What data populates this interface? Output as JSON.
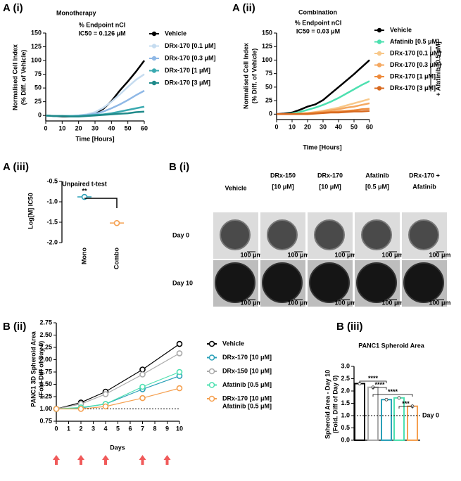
{
  "chart_data": [
    {
      "type": "line",
      "panel_label": "A (i)",
      "title": "Monotherapy",
      "annotations": [
        "% Endpoint nCI",
        "IC50 = 0.126 μM"
      ],
      "x_label": "Time [Hours]",
      "y_label": [
        "Normalised Cell Index",
        "(% Diff. of Vehicle)"
      ],
      "x": [
        0,
        5,
        10,
        15,
        20,
        25,
        30,
        35,
        40,
        45,
        50,
        55,
        60
      ],
      "xlim": [
        0,
        60
      ],
      "xticks": [
        0,
        10,
        20,
        30,
        40,
        50,
        60
      ],
      "ylim": [
        -10,
        150
      ],
      "yticks": [
        0,
        25,
        50,
        75,
        100,
        125,
        150
      ],
      "series": [
        {
          "name": "Vehicle",
          "color": "#000000",
          "values": [
            0,
            -1,
            -2,
            -2,
            -1,
            1,
            4,
            12,
            26,
            45,
            62,
            80,
            100
          ]
        },
        {
          "name": "DRx-170 [0.1 μM]",
          "color": "#c6dcf0",
          "values": [
            0,
            -1,
            -1,
            -1,
            0,
            2,
            6,
            14,
            25,
            38,
            52,
            65,
            75
          ]
        },
        {
          "name": "DRx-170 [0.3 μM]",
          "color": "#8fb8e6",
          "values": [
            0,
            -1,
            -1,
            -1,
            0,
            1,
            3,
            7,
            13,
            20,
            28,
            37,
            45
          ]
        },
        {
          "name": "DRx-170 [1 μM]",
          "color": "#3aa9b0",
          "values": [
            0,
            -1,
            -1,
            -1,
            -1,
            0,
            1,
            2,
            4,
            7,
            10,
            13,
            16
          ]
        },
        {
          "name": "DRx-170 [3 μM]",
          "color": "#1f8a8a",
          "values": [
            0,
            -1,
            -1,
            -2,
            -2,
            -1,
            0,
            1,
            2,
            3,
            4,
            6,
            7
          ]
        }
      ]
    },
    {
      "type": "line",
      "panel_label": "A (ii)",
      "title": "Combination",
      "annotations": [
        "% Endpoint nCI",
        "IC50 = 0.03 μM"
      ],
      "x_label": "Time [Hours]",
      "y_label": [
        "Normalised Cell Index",
        "(% Diff. of Vehicle)"
      ],
      "bracket_label": "+ Afatinib [0.5 μM]",
      "x": [
        0,
        5,
        10,
        15,
        20,
        25,
        30,
        35,
        40,
        45,
        50,
        55,
        60
      ],
      "xlim": [
        0,
        60
      ],
      "xticks": [
        0,
        10,
        20,
        30,
        40,
        50,
        60
      ],
      "ylim": [
        -10,
        150
      ],
      "yticks": [
        0,
        25,
        50,
        75,
        100,
        125,
        150
      ],
      "series": [
        {
          "name": "Vehicle",
          "color": "#000000",
          "values": [
            0,
            1,
            3,
            8,
            14,
            18,
            26,
            38,
            50,
            62,
            74,
            87,
            100
          ]
        },
        {
          "name": "Afatinib [0.5 μM]",
          "color": "#4de0b0",
          "values": [
            0,
            0,
            1,
            4,
            8,
            12,
            17,
            23,
            30,
            38,
            46,
            54,
            61
          ]
        },
        {
          "name": "DRx-170 [0.1 μM]",
          "color": "#f8c88a",
          "values": [
            0,
            0,
            0,
            1,
            2,
            4,
            6,
            9,
            12,
            16,
            20,
            24,
            28
          ]
        },
        {
          "name": "DRx-170 [0.3 μM]",
          "color": "#f5a860",
          "values": [
            0,
            0,
            0,
            1,
            2,
            3,
            5,
            7,
            9,
            12,
            14,
            17,
            20
          ]
        },
        {
          "name": "DRx-170 [1 μM]",
          "color": "#ee8a3a",
          "values": [
            0,
            0,
            0,
            0,
            1,
            2,
            3,
            4,
            5,
            6,
            7,
            9,
            10
          ]
        },
        {
          "name": "DRx-170 [3 μM]",
          "color": "#d86a20",
          "values": [
            0,
            0,
            0,
            0,
            0,
            1,
            2,
            3,
            3,
            4,
            5,
            5,
            6
          ]
        }
      ]
    },
    {
      "type": "dot",
      "panel_label": "A (iii)",
      "y_label": "Log[M] IC50",
      "annotations": [
        "Unpaired t-test",
        "**"
      ],
      "categories": [
        "Mono",
        "Combo"
      ],
      "values": [
        -0.88,
        -1.52
      ],
      "errors": [
        0.02,
        0.04
      ],
      "colors": [
        "#2aa0b8",
        "#f5a050"
      ],
      "ylim": [
        -2,
        -0.5
      ],
      "yticks": [
        -0.5,
        {
          "value": -1,
          "label": "-1.0"
        },
        -1.5,
        {
          "value": -2,
          "label": "-2.0"
        }
      ]
    },
    {
      "type": "image_grid",
      "panel_label": "B (i)",
      "columns": [
        [
          "Vehicle"
        ],
        [
          "DRx-150",
          "[10 μM]"
        ],
        [
          "DRx-170",
          "[10 μM]"
        ],
        [
          "Afatinib",
          "[0.5 μM]"
        ],
        [
          "DRx-170 +",
          "Afatinib"
        ]
      ],
      "rows": [
        "Day 0",
        "Day 10"
      ],
      "scale_bar": "100 μm"
    },
    {
      "type": "line",
      "panel_label": "B (ii)",
      "x_label": "Days",
      "y_label": [
        "PANC1 3D Spheroid Area",
        "(Fold-Diff of Day 0)"
      ],
      "x": [
        0,
        2,
        4,
        7,
        10
      ],
      "xlim": [
        0,
        10
      ],
      "xticks": [
        0,
        1,
        2,
        3,
        4,
        5,
        6,
        7,
        8,
        9,
        10
      ],
      "ylim": [
        0.75,
        2.75
      ],
      "yticks": [
        0.75,
        {
          "value": 1,
          "label": "1.00"
        },
        1.25,
        {
          "value": 1.5,
          "label": "1.50"
        },
        1.75,
        {
          "value": 2,
          "label": "2.00"
        },
        2.25,
        {
          "value": 2.5,
          "label": "2.50"
        },
        2.75
      ],
      "hline": 1,
      "dosing_days": [
        0,
        2,
        4,
        7,
        9
      ],
      "series": [
        {
          "name": [
            "Vehicle"
          ],
          "color": "#000000",
          "values": [
            1.0,
            1.13,
            1.35,
            1.8,
            2.32
          ]
        },
        {
          "name": [
            "DRx-170 [10 μM]"
          ],
          "color": "#2aa0b8",
          "values": [
            1.0,
            1.02,
            1.1,
            1.4,
            1.67
          ]
        },
        {
          "name": [
            "DRx-150 [10 μM]"
          ],
          "color": "#aaaaaa",
          "values": [
            1.0,
            1.1,
            1.3,
            1.7,
            2.13
          ]
        },
        {
          "name": [
            "Afatinib [0.5 μM]"
          ],
          "color": "#4de0b0",
          "values": [
            1.0,
            1.03,
            1.1,
            1.45,
            1.75
          ]
        },
        {
          "name": [
            "DRx-170 [10 μM]",
            "Afatinib [0.5 μM]"
          ],
          "color": "#f5a050",
          "values": [
            1.0,
            1.0,
            1.05,
            1.22,
            1.42
          ]
        }
      ]
    },
    {
      "type": "bar",
      "panel_label": "B (iii)",
      "title": "PANC1 Spheroid Area",
      "y_label": [
        "Spheroid Area - Day 10",
        "(Fold. Diff of Day 0)"
      ],
      "values": [
        2.3,
        2.15,
        1.65,
        1.72,
        1.38
      ],
      "colors": [
        "#000000",
        "#aaaaaa",
        "#2aa0b8",
        "#4de0b0",
        "#f5a050"
      ],
      "ylim": [
        0,
        3
      ],
      "yticks": [
        {
          "value": 0,
          "label": "0.0"
        },
        0.5,
        {
          "value": 1,
          "label": "1.0"
        },
        1.5,
        {
          "value": 2,
          "label": "2.0"
        },
        2.5,
        {
          "value": 3,
          "label": "3.0"
        }
      ],
      "hline": 1,
      "hline_label": "Day 0",
      "significance": [
        "****",
        "****",
        "****",
        "***"
      ]
    }
  ]
}
